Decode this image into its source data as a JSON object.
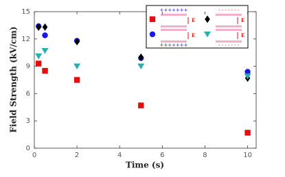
{
  "chart_data": {
    "type": "scatter",
    "xlabel": "Time (s)",
    "ylabel": "Field Strength (kV/cm)",
    "xlim": [
      0,
      10.4
    ],
    "xticks": [
      0,
      2,
      4,
      6,
      8,
      10
    ],
    "ylim": [
      0,
      15
    ],
    "yticks": [
      0,
      3,
      6,
      9,
      12,
      15
    ],
    "series": [
      {
        "marker": "square",
        "color": "#e01010",
        "x": [
          0.2,
          0.5,
          2,
          5,
          10
        ],
        "values": [
          9.3,
          8.5,
          7.5,
          4.7,
          1.7
        ]
      },
      {
        "marker": "circle",
        "color": "#1a1ae0",
        "x": [
          0.2,
          0.5,
          2,
          5,
          10
        ],
        "values": [
          13.4,
          12.4,
          11.8,
          9.9,
          8.4
        ]
      },
      {
        "marker": "diamond",
        "color": "#000000",
        "x": [
          0.2,
          0.5,
          2,
          5,
          10
        ],
        "values": [
          13.3,
          13.3,
          11.7,
          10.0,
          7.7
        ]
      },
      {
        "marker": "triangle-down",
        "color": "#2ab0b0",
        "x": [
          0.2,
          0.5,
          2,
          5,
          10
        ],
        "values": [
          10.1,
          10.7,
          9.0,
          9.0,
          7.9
        ]
      }
    ],
    "legend_diagram": {
      "plus": "+++++++",
      "minus": "- - - - - - -",
      "field": "E"
    }
  }
}
